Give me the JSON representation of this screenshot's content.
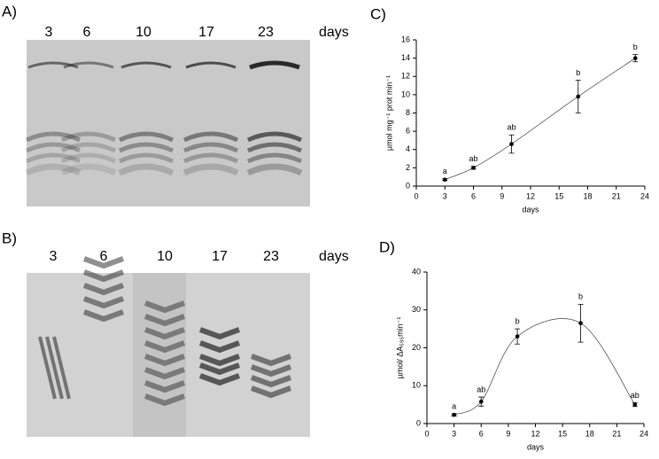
{
  "panels": {
    "a": {
      "label": "A)",
      "lanes": [
        "3",
        "6",
        "10",
        "17",
        "23"
      ],
      "unit": "days"
    },
    "b": {
      "label": "B)",
      "lanes": [
        "3",
        "6",
        "10",
        "17",
        "23"
      ],
      "unit": "days"
    }
  },
  "chart_data": [
    {
      "type": "scatter",
      "label": "C)",
      "x": [
        3,
        6,
        10,
        17,
        23
      ],
      "values": [
        0.7,
        2.0,
        4.6,
        9.8,
        14.0
      ],
      "errors": [
        0.1,
        0.15,
        1.0,
        1.8,
        0.4
      ],
      "annotations": [
        "a",
        "ab",
        "ab",
        "b",
        "b"
      ],
      "xlabel": "days",
      "ylabel": "µmol mg⁻¹ prot min⁻¹",
      "xlim": [
        0,
        24
      ],
      "ylim": [
        0,
        16
      ],
      "xticks": [
        0,
        3,
        6,
        9,
        12,
        15,
        18,
        21,
        24
      ],
      "yticks": [
        0,
        2,
        4,
        6,
        8,
        10,
        12,
        14,
        16
      ],
      "color": "#000000"
    },
    {
      "type": "scatter",
      "label": "D)",
      "x": [
        3,
        6,
        10,
        17,
        23
      ],
      "values": [
        2.3,
        5.8,
        23,
        26.5,
        5
      ],
      "errors": [
        0.3,
        1.2,
        2,
        5,
        0.5
      ],
      "annotations": [
        "a",
        "ab",
        "b",
        "b",
        "ab"
      ],
      "xlabel": "days",
      "ylabel": "µmol/ ΔA₅₉₅min⁻¹",
      "xlim": [
        0,
        24
      ],
      "ylim": [
        0,
        40
      ],
      "xticks": [
        0,
        3,
        6,
        9,
        12,
        15,
        18,
        21,
        24
      ],
      "yticks": [
        0,
        10,
        20,
        30,
        40
      ],
      "color": "#000000"
    }
  ]
}
